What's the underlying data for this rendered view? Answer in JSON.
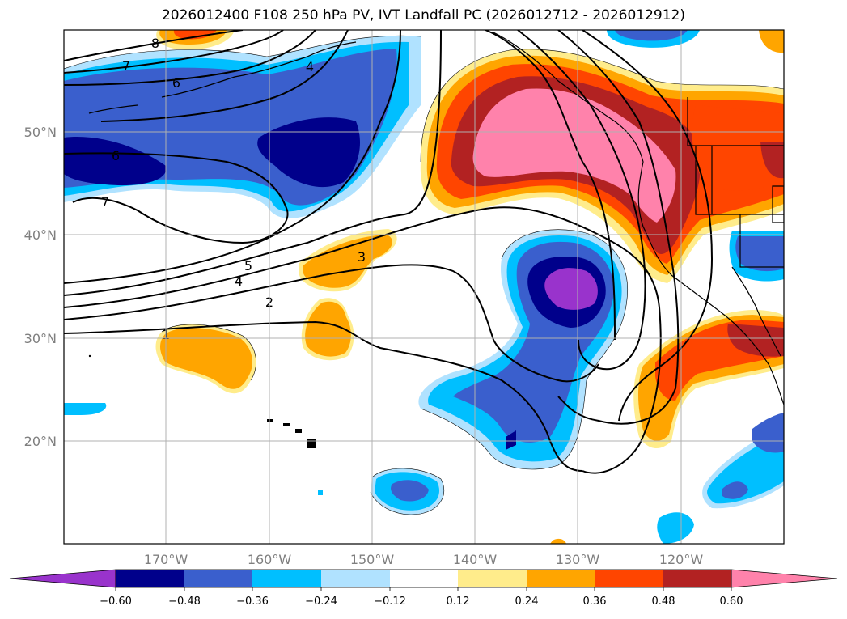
{
  "title": "2026012400 F108 250 hPa PV, IVT Landfall PC (2026012712 - 2026012912)",
  "map": {
    "lon_range": [
      -180,
      -110
    ],
    "lat_range": [
      10,
      60
    ],
    "lon_ticks": [
      "170°W",
      "160°W",
      "150°W",
      "140°W",
      "130°W",
      "120°W"
    ],
    "lat_ticks": [
      "50°N",
      "40°N",
      "30°N",
      "20°N"
    ],
    "gridlines": true,
    "contour_labels": [
      "8",
      "7",
      "6",
      "4",
      "6",
      "7",
      "5",
      "4",
      "3",
      "2",
      "1"
    ]
  },
  "colorbar": {
    "orientation": "horizontal",
    "extend": "both",
    "tick_labels": [
      "−0.60",
      "−0.48",
      "−0.36",
      "−0.24",
      "−0.12",
      "0.12",
      "0.24",
      "0.36",
      "0.48",
      "0.60"
    ],
    "colors": {
      "lt_-0.60": "#9933cc",
      "-0.60_-0.48": "#00008b",
      "-0.48_-0.36": "#3a5fcd",
      "-0.36_-0.24": "#00bfff",
      "-0.24_-0.12": "#b0e2ff",
      "-0.12_0.12": "#ffffff",
      "0.12_0.24": "#ffec8b",
      "0.24_0.36": "#ffa500",
      "0.36_0.48": "#ff4500",
      "0.48_0.60": "#b22222",
      "gt_0.60": "#ff82ab"
    }
  }
}
